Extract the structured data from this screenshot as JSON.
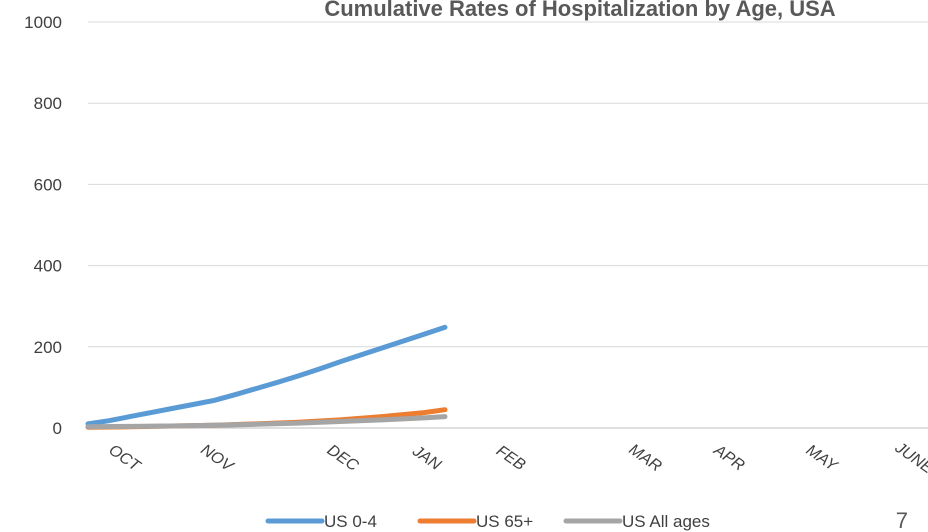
{
  "chart_data": {
    "type": "line",
    "title": "Cumulative Rates of Hospitalization by Age, USA",
    "xlabel": "",
    "ylabel": "",
    "ylim": [
      0,
      1000
    ],
    "yticks": [
      0,
      200,
      400,
      600,
      800,
      1000
    ],
    "grid": true,
    "legend_position": "bottom",
    "x_tick_labels": [
      "OCT",
      "NOV",
      "DEC",
      "JAN",
      "FEB",
      "MAR",
      "APR",
      "MAY",
      "JUNE"
    ],
    "x_tick_positions": [
      0.4,
      1.5,
      3.0,
      4.0,
      5.0,
      6.6,
      7.6,
      8.7,
      9.8
    ],
    "xlim": [
      0,
      10
    ],
    "series": [
      {
        "name": "US 0-4",
        "color": "#5b9bd5",
        "x": [
          0,
          0.25,
          0.5,
          0.75,
          1.0,
          1.25,
          1.5,
          1.75,
          2.0,
          2.25,
          2.5,
          2.75,
          3.0,
          3.25,
          3.5,
          3.75,
          4.0,
          4.25
        ],
        "y": [
          10,
          18,
          28,
          38,
          48,
          58,
          68,
          82,
          97,
          112,
          128,
          145,
          163,
          180,
          197,
          214,
          231,
          248
        ]
      },
      {
        "name": "US 65+",
        "color": "#ed7d31",
        "x": [
          0,
          0.5,
          1.0,
          1.5,
          2.0,
          2.5,
          3.0,
          3.5,
          4.0,
          4.25
        ],
        "y": [
          2,
          3,
          5,
          7,
          10,
          14,
          20,
          28,
          38,
          45
        ]
      },
      {
        "name": "US All ages",
        "color": "#a5a5a5",
        "x": [
          0,
          0.5,
          1.0,
          1.5,
          2.0,
          2.5,
          3.0,
          3.5,
          4.0,
          4.25
        ],
        "y": [
          3,
          4,
          5,
          7,
          9,
          12,
          16,
          20,
          25,
          28
        ]
      }
    ]
  },
  "page_number": "7"
}
